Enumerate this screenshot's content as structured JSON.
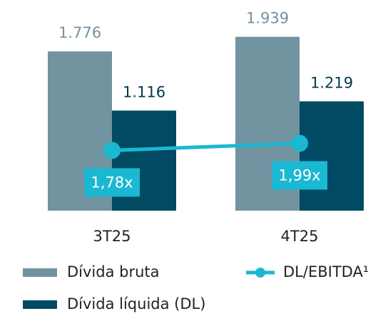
{
  "chart_data": {
    "type": "bar",
    "categories": [
      "3T25",
      "4T25"
    ],
    "ylim": [
      0,
      2000
    ],
    "y2lim": [
      0,
      5.3
    ],
    "series": [
      {
        "name": "Dívida bruta",
        "color": "#7293a0",
        "values": [
          1776,
          1939
        ],
        "value_labels": [
          "1.776",
          "1.939"
        ]
      },
      {
        "name": "Dívida líquida (DL)",
        "color": "#004a63",
        "values": [
          1116,
          1219
        ],
        "value_labels": [
          "1.116",
          "1.219"
        ]
      },
      {
        "name": "DL/EBITDA¹",
        "type": "line",
        "axis": "y2",
        "color": "#1bb8d1",
        "values": [
          1.78,
          1.99
        ],
        "value_labels": [
          "1,78x",
          "1,99x"
        ]
      }
    ]
  }
}
